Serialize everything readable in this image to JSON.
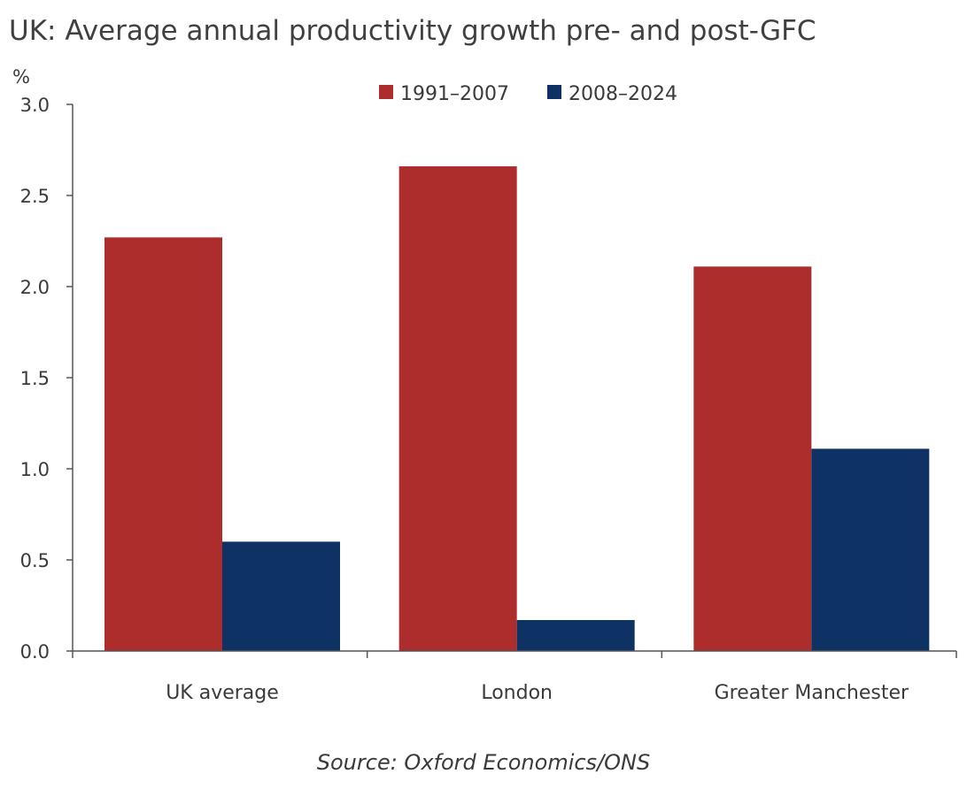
{
  "chart_data": {
    "type": "bar",
    "title": "UK: Average annual productivity growth pre- and post-GFC",
    "ylabel": "%",
    "xlabel": "",
    "ylim": [
      0,
      3.0
    ],
    "yticks": [
      "0.0",
      "0.5",
      "1.0",
      "1.5",
      "2.0",
      "2.5",
      "3.0"
    ],
    "categories": [
      "UK average",
      "London",
      "Greater Manchester"
    ],
    "series": [
      {
        "name": "1991–2007",
        "color": "#ad2c2c",
        "values": [
          2.27,
          2.66,
          2.11
        ]
      },
      {
        "name": "2008–2024",
        "color": "#0f3264",
        "values": [
          0.6,
          0.17,
          1.11
        ]
      }
    ],
    "legend_position": "top-right",
    "grid": false,
    "source": "Source: Oxford Economics/ONS"
  }
}
